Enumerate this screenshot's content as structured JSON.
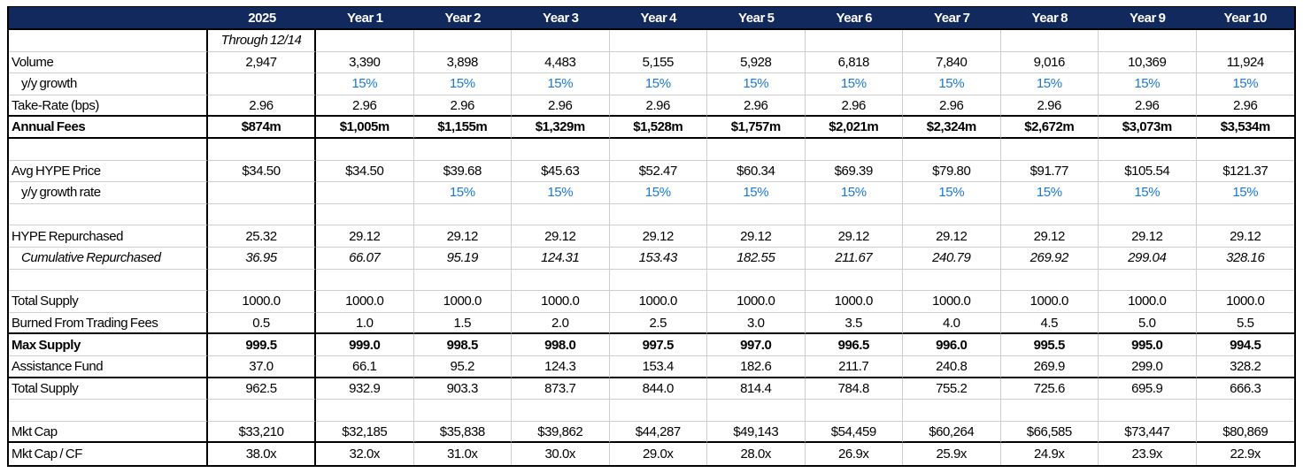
{
  "colors": {
    "header_bg": "#12295e",
    "header_text": "#ffffff",
    "growth_blue": "#1a78d2",
    "gridline": "#cdcdcd",
    "section_border": "#000000"
  },
  "table": {
    "columns": [
      "",
      "2025",
      "Year 1",
      "Year 2",
      "Year 3",
      "Year 4",
      "Year 5",
      "Year 6",
      "Year 7",
      "Year 8",
      "Year 9",
      "Year 10"
    ],
    "rows": [
      {
        "label": "",
        "style": "italic",
        "bb": "thin",
        "values": [
          "Through 12/14",
          "",
          "",
          "",
          "",
          "",
          "",
          "",
          "",
          "",
          ""
        ]
      },
      {
        "label": "Volume",
        "style": "normal",
        "bb": "thin",
        "values": [
          "2,947",
          "3,390",
          "3,898",
          "4,483",
          "5,155",
          "5,928",
          "6,818",
          "7,840",
          "9,016",
          "10,369",
          "11,924"
        ]
      },
      {
        "label": "y/y growth",
        "style": "blue",
        "indent": true,
        "bb": "thin",
        "values": [
          "",
          "15%",
          "15%",
          "15%",
          "15%",
          "15%",
          "15%",
          "15%",
          "15%",
          "15%",
          "15%"
        ]
      },
      {
        "label": "Take-Rate (bps)",
        "style": "normal",
        "bb": "thick",
        "values": [
          "2.96",
          "2.96",
          "2.96",
          "2.96",
          "2.96",
          "2.96",
          "2.96",
          "2.96",
          "2.96",
          "2.96",
          "2.96"
        ]
      },
      {
        "label": "Annual Fees",
        "style": "bold",
        "bb": "thick",
        "values": [
          "$874m",
          "$1,005m",
          "$1,155m",
          "$1,329m",
          "$1,528m",
          "$1,757m",
          "$2,021m",
          "$2,324m",
          "$2,672m",
          "$3,073m",
          "$3,534m"
        ]
      },
      {
        "label": "",
        "style": "normal",
        "bb": "thin",
        "values": [
          "",
          "",
          "",
          "",
          "",
          "",
          "",
          "",
          "",
          "",
          ""
        ]
      },
      {
        "label": "Avg HYPE Price",
        "style": "normal",
        "bb": "thin",
        "values": [
          "$34.50",
          "$34.50",
          "$39.68",
          "$45.63",
          "$52.47",
          "$60.34",
          "$69.39",
          "$79.80",
          "$91.77",
          "$105.54",
          "$121.37"
        ]
      },
      {
        "label": "y/y growth rate",
        "style": "blue",
        "indent": true,
        "bb": "thin",
        "values": [
          "",
          "",
          "15%",
          "15%",
          "15%",
          "15%",
          "15%",
          "15%",
          "15%",
          "15%",
          "15%"
        ]
      },
      {
        "label": "",
        "style": "normal",
        "bb": "thin",
        "values": [
          "",
          "",
          "",
          "",
          "",
          "",
          "",
          "",
          "",
          "",
          ""
        ]
      },
      {
        "label": "HYPE Repurchased",
        "style": "normal",
        "bb": "thin",
        "values": [
          "25.32",
          "29.12",
          "29.12",
          "29.12",
          "29.12",
          "29.12",
          "29.12",
          "29.12",
          "29.12",
          "29.12",
          "29.12"
        ]
      },
      {
        "label": "Cumulative Repurchased",
        "style": "italic",
        "indent": true,
        "bb": "thin",
        "values": [
          "36.95",
          "66.07",
          "95.19",
          "124.31",
          "153.43",
          "182.55",
          "211.67",
          "240.79",
          "269.92",
          "299.04",
          "328.16"
        ]
      },
      {
        "label": "",
        "style": "normal",
        "bb": "thin",
        "values": [
          "",
          "",
          "",
          "",
          "",
          "",
          "",
          "",
          "",
          "",
          ""
        ]
      },
      {
        "label": "Total Supply",
        "style": "normal",
        "bb": "thin",
        "values": [
          "1000.0",
          "1000.0",
          "1000.0",
          "1000.0",
          "1000.0",
          "1000.0",
          "1000.0",
          "1000.0",
          "1000.0",
          "1000.0",
          "1000.0"
        ]
      },
      {
        "label": "Burned From Trading Fees",
        "style": "normal",
        "bb": "thick",
        "values": [
          "0.5",
          "1.0",
          "1.5",
          "2.0",
          "2.5",
          "3.0",
          "3.5",
          "4.0",
          "4.5",
          "5.0",
          "5.5"
        ]
      },
      {
        "label": "Max Supply",
        "style": "bold",
        "bb": "thin",
        "values": [
          "999.5",
          "999.0",
          "998.5",
          "998.0",
          "997.5",
          "997.0",
          "996.5",
          "996.0",
          "995.5",
          "995.0",
          "994.5"
        ]
      },
      {
        "label": "Assistance Fund",
        "style": "normal",
        "bb": "thick",
        "values": [
          "37.0",
          "66.1",
          "95.2",
          "124.3",
          "153.4",
          "182.6",
          "211.7",
          "240.8",
          "269.9",
          "299.0",
          "328.2"
        ]
      },
      {
        "label": "Total Supply",
        "style": "normal",
        "bb": "thin",
        "values": [
          "962.5",
          "932.9",
          "903.3",
          "873.7",
          "844.0",
          "814.4",
          "784.8",
          "755.2",
          "725.6",
          "695.9",
          "666.3"
        ]
      },
      {
        "label": "",
        "style": "normal",
        "bb": "thin",
        "values": [
          "",
          "",
          "",
          "",
          "",
          "",
          "",
          "",
          "",
          "",
          ""
        ]
      },
      {
        "label": "Mkt Cap",
        "style": "normal",
        "bb": "thick",
        "values": [
          "$33,210",
          "$32,185",
          "$35,838",
          "$39,862",
          "$44,287",
          "$49,143",
          "$54,459",
          "$60,264",
          "$66,585",
          "$73,447",
          "$80,869"
        ]
      },
      {
        "label": "Mkt Cap / CF",
        "style": "normal",
        "bb": "none",
        "values": [
          "38.0x",
          "32.0x",
          "31.0x",
          "30.0x",
          "29.0x",
          "28.0x",
          "26.9x",
          "25.9x",
          "24.9x",
          "23.9x",
          "22.9x"
        ]
      }
    ]
  }
}
